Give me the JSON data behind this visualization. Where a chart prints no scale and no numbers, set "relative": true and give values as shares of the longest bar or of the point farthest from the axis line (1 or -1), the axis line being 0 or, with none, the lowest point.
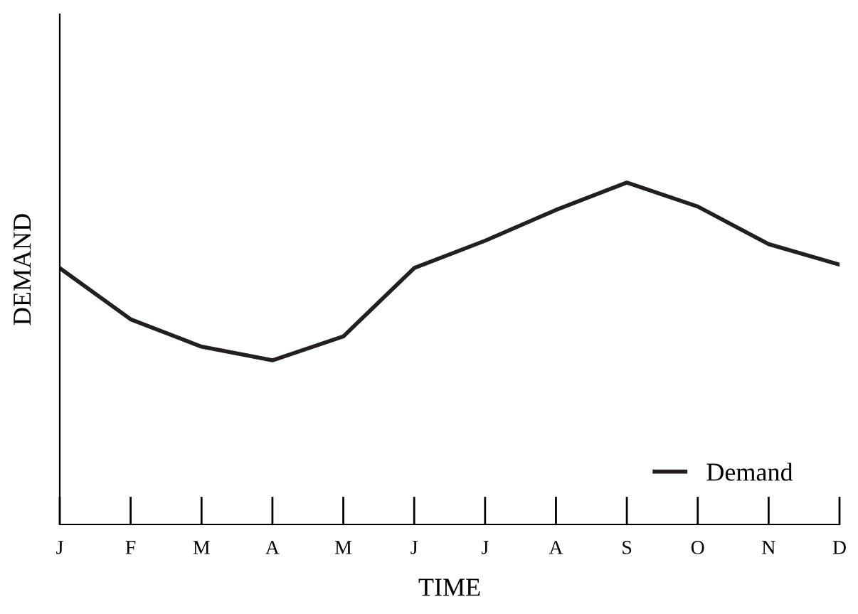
{
  "chart_data": {
    "type": "line",
    "xlabel": "TIME",
    "ylabel": "DEMAND",
    "categories": [
      "J",
      "F",
      "M",
      "A",
      "M",
      "J",
      "J",
      "A",
      "S",
      "O",
      "N",
      "D"
    ],
    "relative": true,
    "series": [
      {
        "name": "Demand",
        "color": "#231f20",
        "values": [
          0.75,
          0.6,
          0.52,
          0.48,
          0.55,
          0.75,
          0.83,
          0.92,
          1,
          0.93,
          0.82,
          0.76
        ]
      }
    ],
    "legend": "bottom right",
    "grid": false,
    "marker": "none",
    "line_style": "solid"
  }
}
